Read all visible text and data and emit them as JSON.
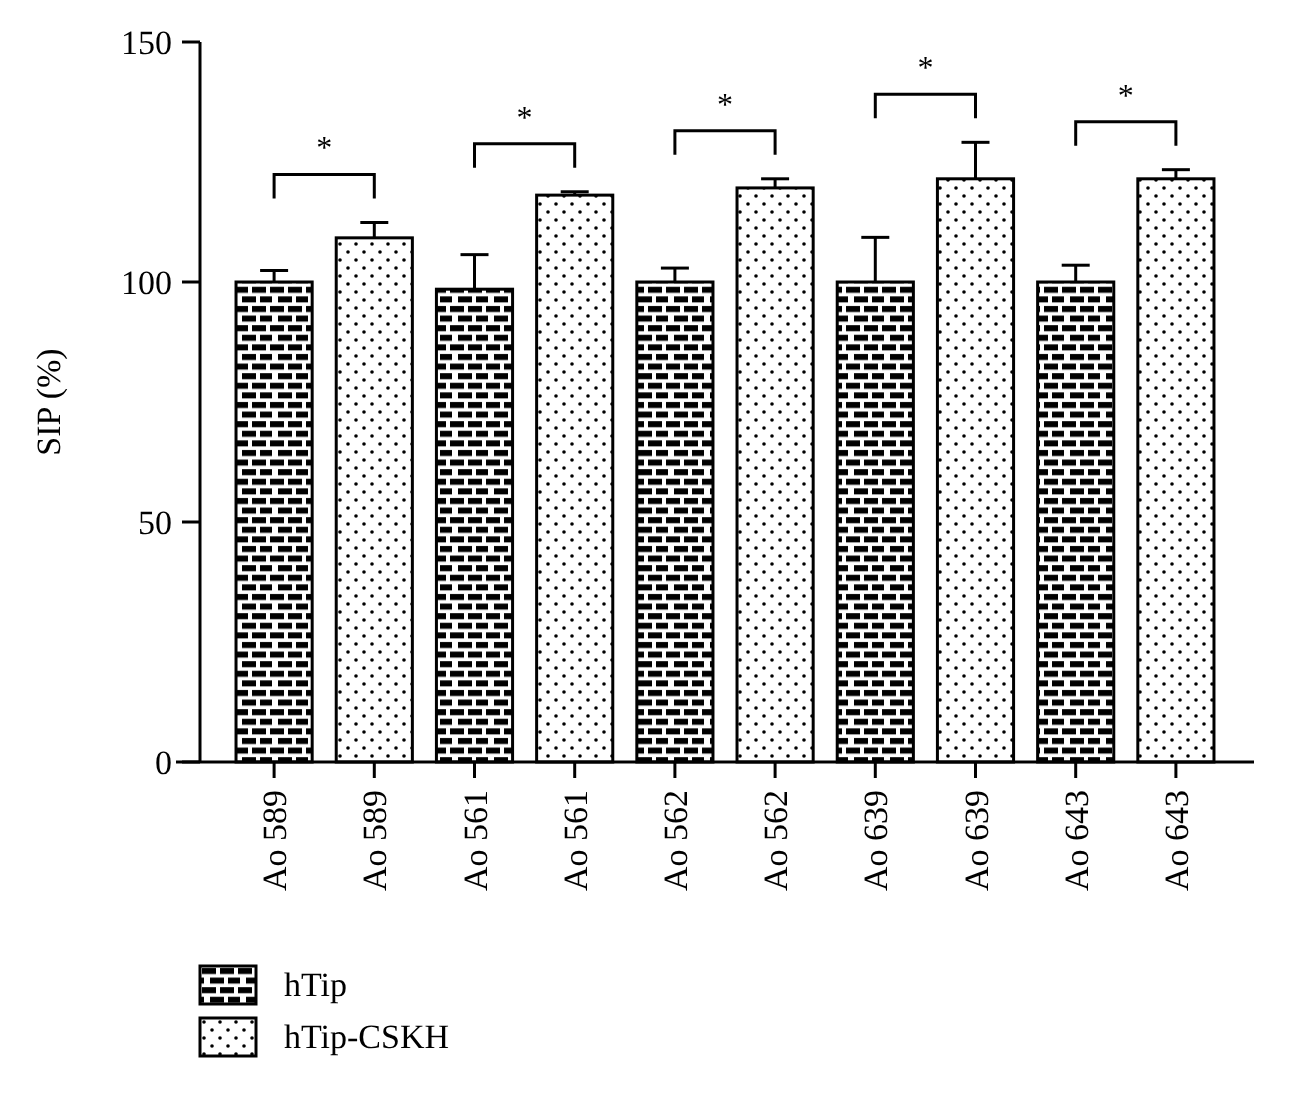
{
  "chart_data": {
    "type": "bar",
    "ylabel": "SIP (%)",
    "categories": [
      "Ao 589",
      "Ao 589",
      "Ao 561",
      "Ao 561",
      "Ao 562",
      "Ao 562",
      "Ao 639",
      "Ao 639",
      "Ao 643",
      "Ao 643"
    ],
    "series": [
      {
        "name": "hTip",
        "color": "#000000",
        "values": [
          100,
          null,
          98.5,
          null,
          100,
          null,
          100,
          null,
          100,
          null
        ],
        "errors": [
          2.4,
          null,
          7.2,
          null,
          2.9,
          null,
          9.3,
          null,
          3.5,
          null
        ]
      },
      {
        "name": "hTip-CSKH",
        "color": "#000000",
        "values": [
          null,
          109.2,
          null,
          118.1,
          null,
          119.6,
          null,
          121.5,
          null,
          121.5
        ],
        "errors": [
          null,
          3.2,
          null,
          0.7,
          null,
          1.9,
          null,
          7.6,
          null,
          1.9
        ]
      }
    ],
    "ylim": [
      0,
      150
    ],
    "yticks": [
      0,
      50,
      100,
      150
    ],
    "grid": false,
    "legend": "bottom left",
    "annotations": [
      "*",
      "*",
      "*",
      "*",
      "*"
    ]
  }
}
